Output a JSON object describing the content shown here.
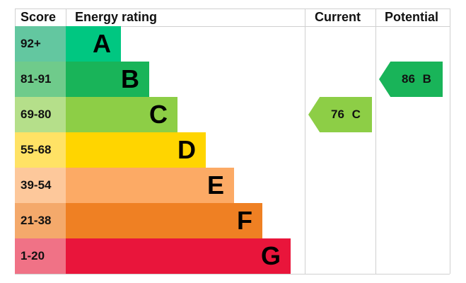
{
  "chart_data": {
    "type": "bar",
    "headers": {
      "score": "Score",
      "rating": "Energy rating",
      "current": "Current",
      "potential": "Potential"
    },
    "bands": [
      {
        "score": "92+",
        "letter": "A",
        "color": "#00c781",
        "score_color": "#63c7a0"
      },
      {
        "score": "81-91",
        "letter": "B",
        "color": "#19b459",
        "score_color": "#6fcb8b"
      },
      {
        "score": "69-80",
        "letter": "C",
        "color": "#8dce46",
        "score_color": "#b5df8a"
      },
      {
        "score": "55-68",
        "letter": "D",
        "color": "#ffd500",
        "score_color": "#ffe265"
      },
      {
        "score": "39-54",
        "letter": "E",
        "color": "#fcaa65",
        "score_color": "#fdc89b"
      },
      {
        "score": "21-38",
        "letter": "F",
        "color": "#ef8023",
        "score_color": "#f4a96b"
      },
      {
        "score": "1-20",
        "letter": "G",
        "color": "#e9153b",
        "score_color": "#f07286"
      }
    ],
    "current": {
      "value": 76,
      "letter": "C",
      "label": "76 C",
      "color": "#8dce46"
    },
    "potential": {
      "value": 86,
      "letter": "B",
      "label": "86 B",
      "color": "#19b459"
    }
  }
}
